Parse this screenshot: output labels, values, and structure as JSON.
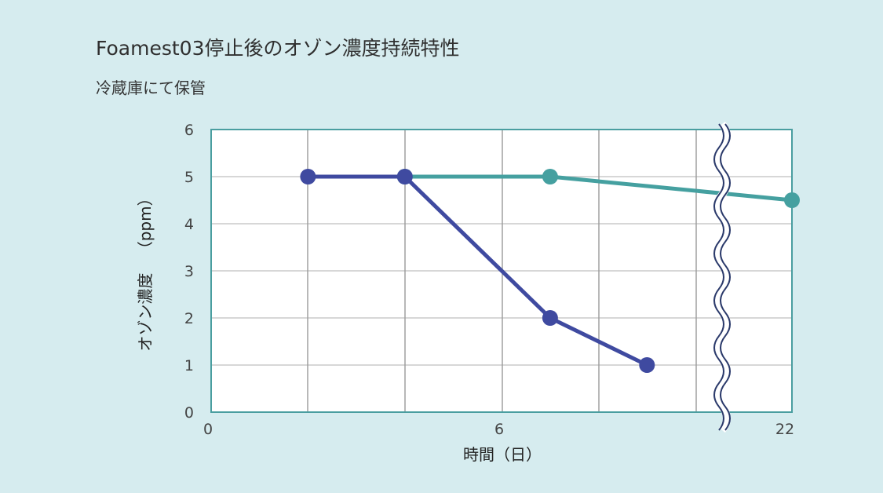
{
  "title": "Foamest03停止後のオゾン濃度持続特性",
  "subtitle": "冷蔵庫にて保管",
  "colors": {
    "background": "#d6ecef",
    "plot_background": "#ffffff",
    "frame": "#4a9ea0",
    "grid": "#bfbfbf",
    "series_teal": "#45a0a0",
    "series_indigo": "#3f4aa0",
    "break_line": "#2b3a6b"
  },
  "chart_data": {
    "type": "line",
    "title": "Foamest03停止後のオゾン濃度持続特性",
    "subtitle": "冷蔵庫にて保管",
    "xlabel": "時間（日）",
    "ylabel_main": "オゾン濃度",
    "ylabel_unit": "（ppm）",
    "ylim": [
      0,
      6
    ],
    "yticks": [
      "0",
      "1",
      "2",
      "3",
      "4",
      "5",
      "6"
    ],
    "xtick_labels": [
      "0",
      "6",
      "22"
    ],
    "axis_break": true,
    "grid": true,
    "legend": "none",
    "series": [
      {
        "color": "#45a0a0",
        "x": [
          4,
          7,
          22
        ],
        "y": [
          5,
          5,
          4.5
        ]
      },
      {
        "color": "#3f4aa0",
        "x": [
          2,
          4,
          7,
          9
        ],
        "y": [
          5,
          5,
          2,
          1
        ]
      }
    ]
  }
}
